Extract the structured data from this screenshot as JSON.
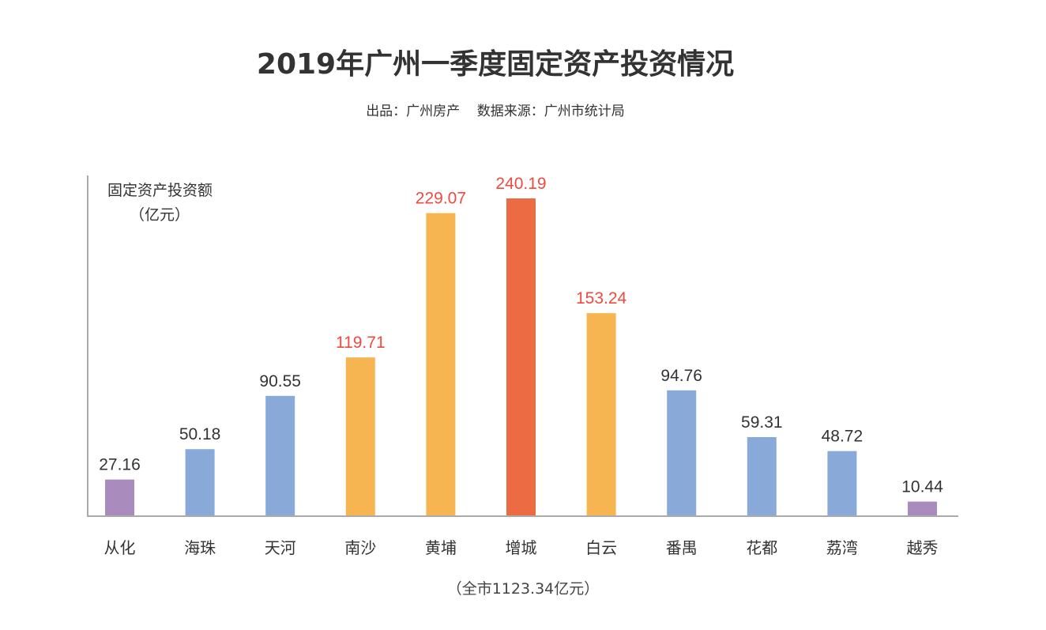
{
  "chart_data": {
    "type": "bar",
    "title": "2019年广州一季度固定资产投资情况",
    "subtitle": "出品：广州房产    数据来源：广州市统计局",
    "ylabel": "固定资产投资额",
    "yunit": "（亿元）",
    "xlabel": "",
    "note": "（全市1123.34亿元）",
    "categories": [
      "从化",
      "海珠",
      "天河",
      "南沙",
      "黄埔",
      "增城",
      "白云",
      "番禺",
      "花都",
      "荔湾",
      "越秀"
    ],
    "values": [
      27.16,
      50.18,
      90.55,
      119.71,
      229.07,
      240.19,
      153.24,
      94.76,
      59.31,
      48.72,
      10.44
    ],
    "labels": [
      "27.16",
      "50.18",
      "90.55",
      "119.71",
      "229.07",
      "240.19",
      "153.24",
      "94.76",
      "59.31",
      "48.72",
      "10.44"
    ],
    "bar_colors": [
      "#A98BBD",
      "#89AAD9",
      "#89AAD9",
      "#F7B552",
      "#F7B552",
      "#EC6B43",
      "#F7B552",
      "#89AAD9",
      "#89AAD9",
      "#89AAD9",
      "#A98BBD"
    ],
    "label_colors": [
      "#333333",
      "#333333",
      "#333333",
      "#EE4A3F",
      "#EE4A3F",
      "#EE4A3F",
      "#EE4A3F",
      "#333333",
      "#333333",
      "#333333",
      "#333333"
    ],
    "ylim": [
      0,
      240.19
    ],
    "grid": false,
    "legend": "none"
  }
}
